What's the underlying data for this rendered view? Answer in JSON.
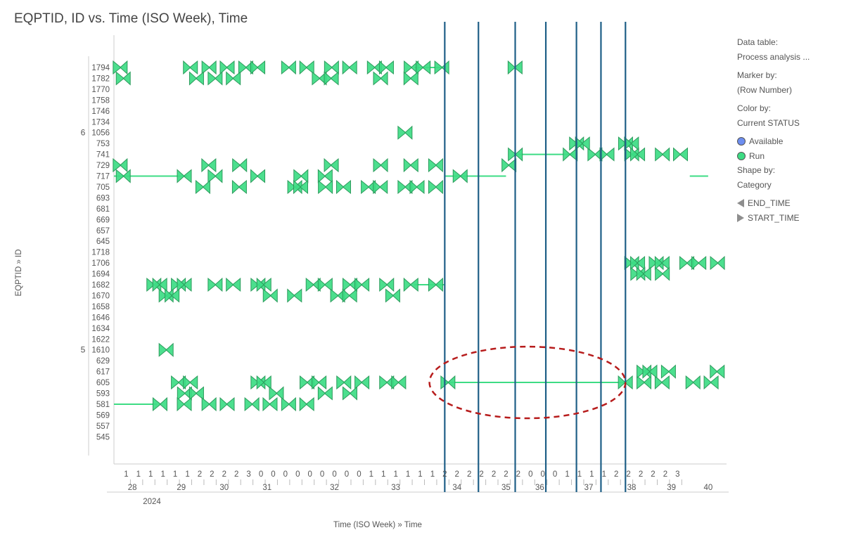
{
  "title": "EQPTID, ID vs. Time (ISO Week), Time",
  "colors": {
    "run": "#3ddc84",
    "run_stroke": "#2c9b5c",
    "available": "#6d8ef0",
    "vline": "#1f5f87",
    "ellipse": "#b71c1c",
    "axis": "#cccccc"
  },
  "legend": {
    "data_table_label": "Data table:",
    "data_table_value": "Process analysis ...",
    "marker_by_label": "Marker by:",
    "marker_by_value": "(Row Number)",
    "color_by_label": "Color by:",
    "color_by_value": "Current STATUS",
    "status_items": [
      {
        "label": "Available",
        "color": "#6d8ef0"
      },
      {
        "label": "Run",
        "color": "#3ddc84"
      }
    ],
    "shape_by_label": "Shape by:",
    "shape_by_value": "Category",
    "shape_items": [
      {
        "label": "END_TIME",
        "shape": "left-triangle"
      },
      {
        "label": "START_TIME",
        "shape": "right-triangle"
      }
    ]
  },
  "chart_data": {
    "type": "scatter",
    "title": "EQPTID, ID vs. Time (ISO Week), Time",
    "xlabel": "Time (ISO Week) » Time",
    "ylabel": "EQPTID » ID",
    "year_label": "2024",
    "x_week_labels": [
      "28",
      "29",
      "30",
      "31",
      "32",
      "33",
      "34",
      "35",
      "36",
      "37",
      "38",
      "39",
      "40"
    ],
    "x_week_positions": [
      28.3,
      29.1,
      29.8,
      30.5,
      31.6,
      32.6,
      33.6,
      34.4,
      34.95,
      35.75,
      36.45,
      37.1,
      37.7
    ],
    "x_day_ticks": [
      {
        "x": 28.2,
        "label": "1"
      },
      {
        "x": 28.4,
        "label": "1"
      },
      {
        "x": 28.6,
        "label": "1"
      },
      {
        "x": 28.8,
        "label": "1"
      },
      {
        "x": 29.0,
        "label": "1"
      },
      {
        "x": 29.2,
        "label": "1"
      },
      {
        "x": 29.4,
        "label": "2"
      },
      {
        "x": 29.6,
        "label": "2"
      },
      {
        "x": 29.8,
        "label": "2"
      },
      {
        "x": 30.0,
        "label": "2"
      },
      {
        "x": 30.2,
        "label": "3"
      },
      {
        "x": 30.4,
        "label": "0"
      },
      {
        "x": 30.6,
        "label": "0"
      },
      {
        "x": 30.8,
        "label": "0"
      },
      {
        "x": 31.0,
        "label": "0"
      },
      {
        "x": 31.2,
        "label": "0"
      },
      {
        "x": 31.4,
        "label": "0"
      },
      {
        "x": 31.6,
        "label": "0"
      },
      {
        "x": 31.8,
        "label": "0"
      },
      {
        "x": 32.0,
        "label": "0"
      },
      {
        "x": 32.2,
        "label": "1"
      },
      {
        "x": 32.4,
        "label": "1"
      },
      {
        "x": 32.6,
        "label": "1"
      },
      {
        "x": 32.8,
        "label": "1"
      },
      {
        "x": 33.0,
        "label": "1"
      },
      {
        "x": 33.2,
        "label": "1"
      },
      {
        "x": 33.4,
        "label": "2"
      },
      {
        "x": 33.6,
        "label": "2"
      },
      {
        "x": 33.8,
        "label": "2"
      },
      {
        "x": 34.0,
        "label": "2"
      },
      {
        "x": 34.2,
        "label": "2"
      },
      {
        "x": 34.4,
        "label": "2"
      },
      {
        "x": 34.6,
        "label": "2"
      },
      {
        "x": 34.8,
        "label": "0"
      },
      {
        "x": 35.0,
        "label": "0"
      },
      {
        "x": 35.2,
        "label": "0"
      },
      {
        "x": 35.4,
        "label": "1"
      },
      {
        "x": 35.6,
        "label": "1"
      },
      {
        "x": 35.8,
        "label": "1"
      },
      {
        "x": 36.0,
        "label": "1"
      },
      {
        "x": 36.2,
        "label": "2"
      },
      {
        "x": 36.4,
        "label": "2"
      },
      {
        "x": 36.6,
        "label": "2"
      },
      {
        "x": 36.8,
        "label": "2"
      },
      {
        "x": 37.0,
        "label": "2"
      },
      {
        "x": 37.2,
        "label": "3"
      }
    ],
    "y_rows": [
      "1794",
      "1782",
      "1770",
      "1758",
      "1746",
      "1734",
      "1056",
      "753",
      "741",
      "729",
      "717",
      "705",
      "693",
      "681",
      "669",
      "657",
      "645",
      "1718",
      "1706",
      "1694",
      "1682",
      "1670",
      "1658",
      "1646",
      "1634",
      "1622",
      "1610",
      "629",
      "617",
      "605",
      "593",
      "581",
      "569",
      "557",
      "545"
    ],
    "y_groups": [
      {
        "label": "6",
        "row": "1056"
      },
      {
        "label": "5",
        "row": "1610"
      }
    ],
    "xlim": [
      28.0,
      38.0
    ],
    "vertical_lines_x": [
      33.4,
      33.95,
      34.55,
      35.05,
      35.55,
      35.95,
      36.35
    ],
    "ellipse": {
      "x_center": 34.75,
      "x_half_width": 1.6,
      "row_center": "605",
      "row_half_span": 1.65
    },
    "series": [
      {
        "name": "Run",
        "color": "#3ddc84",
        "lines": [
          {
            "y_row": "581",
            "x": [
              28.0,
              28.7
            ]
          },
          {
            "y_row": "605",
            "x": [
              33.4,
              36.35
            ]
          },
          {
            "y_row": "717",
            "x": [
              28.0,
              29.2
            ]
          },
          {
            "y_row": "717",
            "x": [
              33.4,
              34.4
            ]
          },
          {
            "y_row": "741",
            "x": [
              34.55,
              35.5
            ]
          },
          {
            "y_row": "1682",
            "x": [
              32.9,
              33.4
            ]
          },
          {
            "y_row": "1794",
            "x": [
              32.9,
              33.4
            ]
          },
          {
            "y_row": "718",
            "x": [
              37.4,
              37.7
            ]
          }
        ],
        "clusters": [
          {
            "y_row": "1794",
            "x": [
              28.05,
              29.3,
              29.5,
              29.9,
              30.1,
              30.4,
              30.8,
              31.2,
              31.5,
              31.9,
              32.2,
              32.5,
              32.8,
              33.1,
              33.3,
              34.6
            ]
          },
          {
            "y_row": "1782",
            "x": [
              28.1,
              29.4,
              29.6,
              30.0,
              31.3,
              31.6,
              32.3,
              32.9
            ]
          },
          {
            "y_row": "729",
            "x": [
              28.05,
              29.6,
              30.0,
              31.6,
              32.3,
              32.9,
              33.2,
              34.5
            ]
          },
          {
            "y_row": "717",
            "x": [
              28.1,
              29.2,
              29.6,
              30.4,
              31.0,
              31.5,
              33.6
            ]
          },
          {
            "y_row": "705",
            "x": [
              29.4,
              30.1,
              30.9,
              31.1,
              31.4,
              31.8,
              32.1,
              32.4,
              32.7,
              33.0,
              33.2
            ]
          },
          {
            "y_row": "741",
            "x": [
              34.5,
              35.5,
              35.8,
              36.1,
              36.4,
              36.6,
              36.9,
              37.3
            ]
          },
          {
            "y_row": "753",
            "x": [
              35.5,
              35.7,
              36.3,
              36.5
            ]
          },
          {
            "y_row": "1056",
            "x": [
              32.7
            ]
          },
          {
            "y_row": "1682",
            "x": [
              28.6,
              28.8,
              29.0,
              29.2,
              29.6,
              30.0,
              30.3,
              30.5,
              31.2,
              31.5,
              31.8,
              32.1,
              32.4,
              32.9,
              33.2
            ]
          },
          {
            "y_row": "1670",
            "x": [
              28.8,
              29.0,
              30.5,
              31.0,
              31.6,
              31.9,
              32.5
            ]
          },
          {
            "y_row": "1706",
            "x": [
              36.4,
              36.6,
              36.8,
              37.0,
              37.3,
              37.6,
              37.8
            ]
          },
          {
            "y_row": "1694",
            "x": [
              36.5,
              36.7,
              36.9
            ]
          },
          {
            "y_row": "1610",
            "x": [
              28.8
            ]
          },
          {
            "y_row": "605",
            "x": [
              29.0,
              29.3,
              30.3,
              30.5,
              31.1,
              31.4,
              31.7,
              32.1,
              32.4,
              32.7,
              33.4,
              36.4,
              36.6,
              37.0,
              37.4,
              37.8
            ]
          },
          {
            "y_row": "593",
            "x": [
              29.1,
              29.4,
              30.6,
              31.5,
              31.8
            ]
          },
          {
            "y_row": "581",
            "x": [
              28.7,
              29.2,
              29.5,
              29.9,
              30.2,
              30.6,
              30.8,
              31.2
            ]
          },
          {
            "y_row": "617",
            "x": [
              36.6,
              36.8,
              37.0,
              37.9
            ]
          }
        ]
      }
    ],
    "grid": false,
    "legend_position": "right"
  }
}
